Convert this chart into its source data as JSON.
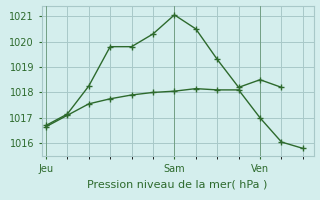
{
  "line1_x": [
    0,
    1,
    2,
    3,
    4,
    5,
    6,
    7,
    8,
    9,
    10,
    11
  ],
  "line1_y": [
    1016.7,
    1017.15,
    1018.25,
    1019.8,
    1019.8,
    1020.3,
    1021.05,
    1020.5,
    1019.3,
    1018.2,
    1018.5,
    1018.2
  ],
  "line2_x": [
    0,
    1,
    2,
    3,
    4,
    5,
    6,
    7,
    8,
    9,
    10,
    11,
    12
  ],
  "line2_y": [
    1016.65,
    1017.1,
    1017.55,
    1017.75,
    1017.9,
    1018.0,
    1018.05,
    1018.15,
    1018.1,
    1018.1,
    1017.0,
    1016.05,
    1015.8
  ],
  "line_color": "#2d6a2d",
  "bg_color": "#d4eeed",
  "grid_color": "#a8c8c8",
  "ylim": [
    1015.5,
    1021.4
  ],
  "yticks": [
    1016,
    1017,
    1018,
    1019,
    1020,
    1021
  ],
  "xticks": [
    0,
    4,
    8,
    12
  ],
  "xlabel": "Pression niveau de la mer( hPa )",
  "xlabel_fontsize": 8,
  "tick_fontsize": 7,
  "day_labels": [
    "Jeu",
    "Sam",
    "Ven"
  ],
  "day_positions": [
    0,
    6,
    10
  ],
  "xlim": [
    -0.2,
    12.5
  ],
  "vline_positions": [
    0,
    6,
    10
  ]
}
